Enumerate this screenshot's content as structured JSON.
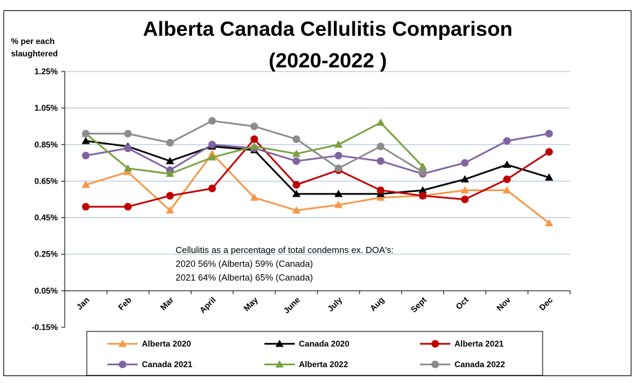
{
  "chart_data": {
    "type": "line",
    "title": [
      "Alberta Canada Cellulitis Comparison",
      "(2020-2022 )"
    ],
    "ylabel": [
      "% per each",
      "slaughtered"
    ],
    "xlabel": "",
    "categories": [
      "Jan",
      "Feb",
      "Mar",
      "April",
      "May",
      "June",
      "July",
      "Aug",
      "Sept",
      "Oct",
      "Nov",
      "Dec"
    ],
    "yticks": [
      "1.25%",
      "1.05%",
      "0.85%",
      "0.65%",
      "0.45%",
      "0.25%",
      "0.05%",
      "-0.15%"
    ],
    "ylim": [
      -0.15,
      1.25
    ],
    "grid": true,
    "legend_position": "bottom",
    "annotation": [
      "Cellulitis as a percentage of total condemns ex. DOA's:",
      "2020 56% (Alberta) 59% (Canada)",
      "2021 64% (Alberta) 65% (Canada)"
    ],
    "series": [
      {
        "name": "Alberta 2020",
        "color": "#F79646",
        "marker": "triangle",
        "values": [
          0.63,
          0.7,
          0.49,
          0.8,
          0.56,
          0.49,
          0.52,
          0.56,
          0.57,
          0.6,
          0.6,
          0.42
        ]
      },
      {
        "name": "Canada 2020",
        "color": "#000000",
        "marker": "triangle",
        "values": [
          0.87,
          0.84,
          0.76,
          0.84,
          0.82,
          0.58,
          0.58,
          0.58,
          0.6,
          0.66,
          0.74,
          0.67
        ]
      },
      {
        "name": "Alberta 2021",
        "color": "#C00000",
        "marker": "circle",
        "values": [
          0.51,
          0.51,
          0.57,
          0.61,
          0.88,
          0.63,
          0.71,
          0.6,
          0.57,
          0.55,
          0.66,
          0.81
        ]
      },
      {
        "name": "Canada 2021",
        "color": "#8064A2",
        "marker": "circle",
        "values": [
          0.79,
          0.83,
          0.71,
          0.85,
          0.83,
          0.76,
          0.79,
          0.76,
          0.69,
          0.75,
          0.87,
          0.91
        ]
      },
      {
        "name": "Alberta 2022",
        "color": "#77A03C",
        "marker": "triangle",
        "values": [
          0.91,
          0.72,
          0.69,
          0.78,
          0.84,
          0.8,
          0.85,
          0.97,
          0.73,
          null,
          null,
          null
        ]
      },
      {
        "name": "Canada 2022",
        "color": "#8C8C8C",
        "marker": "circle",
        "values": [
          0.91,
          0.91,
          0.86,
          0.98,
          0.95,
          0.88,
          0.72,
          0.84,
          0.7,
          null,
          null,
          null
        ]
      }
    ]
  }
}
